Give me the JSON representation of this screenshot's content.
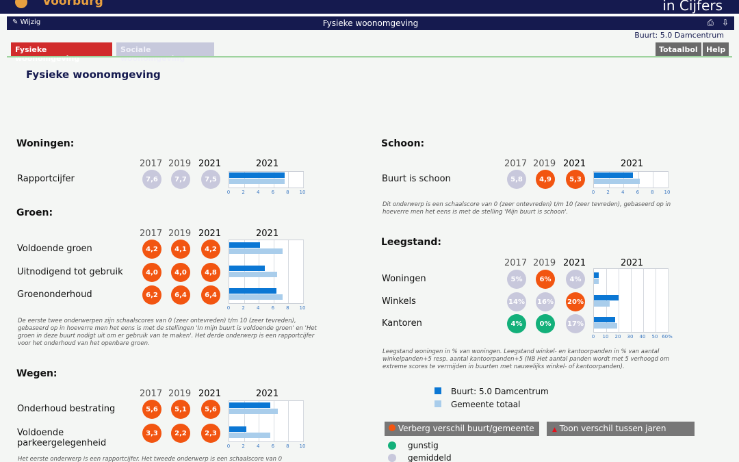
{
  "header": {
    "brand": "Voorburg",
    "tagline": "in Cijfers",
    "edit_label": "Wijzig",
    "page_title": "Fysieke woonomgeving",
    "print_icon": "printer-icon",
    "download_icon": "download-icon"
  },
  "buurt_label": "Buurt: 5.0 Damcentrum",
  "tabs": [
    {
      "label": "Fysieke woonomgeving",
      "active": true
    },
    {
      "label": "Sociale woonomgeving",
      "active": false
    }
  ],
  "buttons": {
    "totaalbol": "Totaalbol",
    "help": "Help"
  },
  "main_title": "Fysieke woonomgeving",
  "year_headers": [
    "2017",
    "2019",
    "2021"
  ],
  "chart_year": "2021",
  "colors": {
    "bad": "#f25511",
    "good": "#13b07a",
    "neutral": "#c8c8dc",
    "buurt": "#0b77d4",
    "gemeente": "#a9cdeb"
  },
  "sections": {
    "woningen": {
      "title": "Woningen:",
      "ticks": [
        "0",
        "2",
        "4",
        "6",
        "8",
        "10"
      ],
      "rows": [
        {
          "label": "Rapportcijfer",
          "values": [
            "7,6",
            "7,7",
            "7,5"
          ],
          "status": [
            "neutral",
            "neutral",
            "neutral"
          ],
          "buurt": 7.5,
          "gemeente": 7.5
        }
      ]
    },
    "groen": {
      "title": "Groen:",
      "ticks": [
        "0",
        "2",
        "4",
        "6",
        "8",
        "10"
      ],
      "rows": [
        {
          "label": "Voldoende groen",
          "values": [
            "4,2",
            "4,1",
            "4,2"
          ],
          "status": [
            "bad",
            "bad",
            "bad"
          ],
          "buurt": 4.2,
          "gemeente": 7.2
        },
        {
          "label": "Uitnodigend tot gebruik",
          "values": [
            "4,0",
            "4,0",
            "4,8"
          ],
          "status": [
            "bad",
            "bad",
            "bad"
          ],
          "buurt": 4.8,
          "gemeente": 6.5
        },
        {
          "label": "Groenonderhoud",
          "values": [
            "6,2",
            "6,4",
            "6,4"
          ],
          "status": [
            "bad",
            "bad",
            "bad"
          ],
          "buurt": 6.4,
          "gemeente": 7.2
        }
      ],
      "note": "De eerste twee onderwerpen zijn schaalscores van 0 (zeer ontevreden) t/m 10 (zeer tevreden), gebaseerd op in hoeverre men het eens is met de stellingen 'In mijn buurt is voldoende groen' en 'Het groen in deze buurt nodigt uit om er gebruik van te maken'. Het derde onderwerp is een rapportcijfer voor het onderhoud van het openbare groen."
    },
    "wegen": {
      "title": "Wegen:",
      "ticks": [
        "0",
        "2",
        "4",
        "6",
        "8",
        "10"
      ],
      "rows": [
        {
          "label": "Onderhoud bestrating",
          "values": [
            "5,6",
            "5,1",
            "5,6"
          ],
          "status": [
            "bad",
            "bad",
            "bad"
          ],
          "buurt": 5.6,
          "gemeente": 6.6
        },
        {
          "label": "Voldoende parkeergelegenheid",
          "values": [
            "3,3",
            "2,2",
            "2,3"
          ],
          "status": [
            "bad",
            "bad",
            "bad"
          ],
          "buurt": 2.3,
          "gemeente": 5.6
        }
      ],
      "note": "Het eerste onderwerp is een rapportcijfer. Het tweede onderwerp is een schaalscore van 0"
    },
    "schoon": {
      "title": "Schoon:",
      "ticks": [
        "0",
        "2",
        "4",
        "6",
        "8",
        "10"
      ],
      "rows": [
        {
          "label": "Buurt is schoon",
          "values": [
            "5,8",
            "4,9",
            "5,3"
          ],
          "status": [
            "neutral",
            "bad",
            "bad"
          ],
          "buurt": 5.3,
          "gemeente": 6.2
        }
      ],
      "note": "Dit onderwerp is een schaalscore van 0 (zeer ontevreden) t/m 10 (zeer tevreden), gebaseerd op in hoeverre men het eens is met de stelling 'Mijn buurt is schoon'."
    },
    "leegstand": {
      "title": "Leegstand:",
      "ticks": [
        "0",
        "10",
        "20",
        "30",
        "40",
        "50",
        "60%"
      ],
      "rows": [
        {
          "label": "Woningen",
          "values": [
            "5%",
            "6%",
            "4%"
          ],
          "status": [
            "neutral",
            "bad",
            "neutral"
          ],
          "buurt": 4,
          "gemeente": 4
        },
        {
          "label": "Winkels",
          "values": [
            "14%",
            "16%",
            "20%"
          ],
          "status": [
            "neutral",
            "neutral",
            "bad"
          ],
          "buurt": 20,
          "gemeente": 13
        },
        {
          "label": "Kantoren",
          "values": [
            "4%",
            "0%",
            "17%"
          ],
          "status": [
            "good",
            "good",
            "neutral"
          ],
          "buurt": 17,
          "gemeente": 19
        }
      ],
      "note": "Leegstand woningen in % van woningen. Leegstand winkel- en kantoorpanden in % van aantal winkelpanden+5 resp. aantal kantoorpanden+5 (NB Het aantal panden wordt met 5 verhoogd om extreme scores te vermijden in buurten met nauwelijks winkel- of kantoorpanden)."
    }
  },
  "legend": {
    "buurt": "Buurt: 5.0 Damcentrum",
    "gemeente": "Gemeente totaal"
  },
  "toggles": {
    "verschil_buurt": "Verberg verschil buurt/gemeente",
    "verschil_jaren": "Toon verschil tussen jaren"
  },
  "status_legend": [
    {
      "label": "gunstig",
      "color": "#13b07a"
    },
    {
      "label": "gemiddeld",
      "color": "#c8c8dc"
    }
  ]
}
